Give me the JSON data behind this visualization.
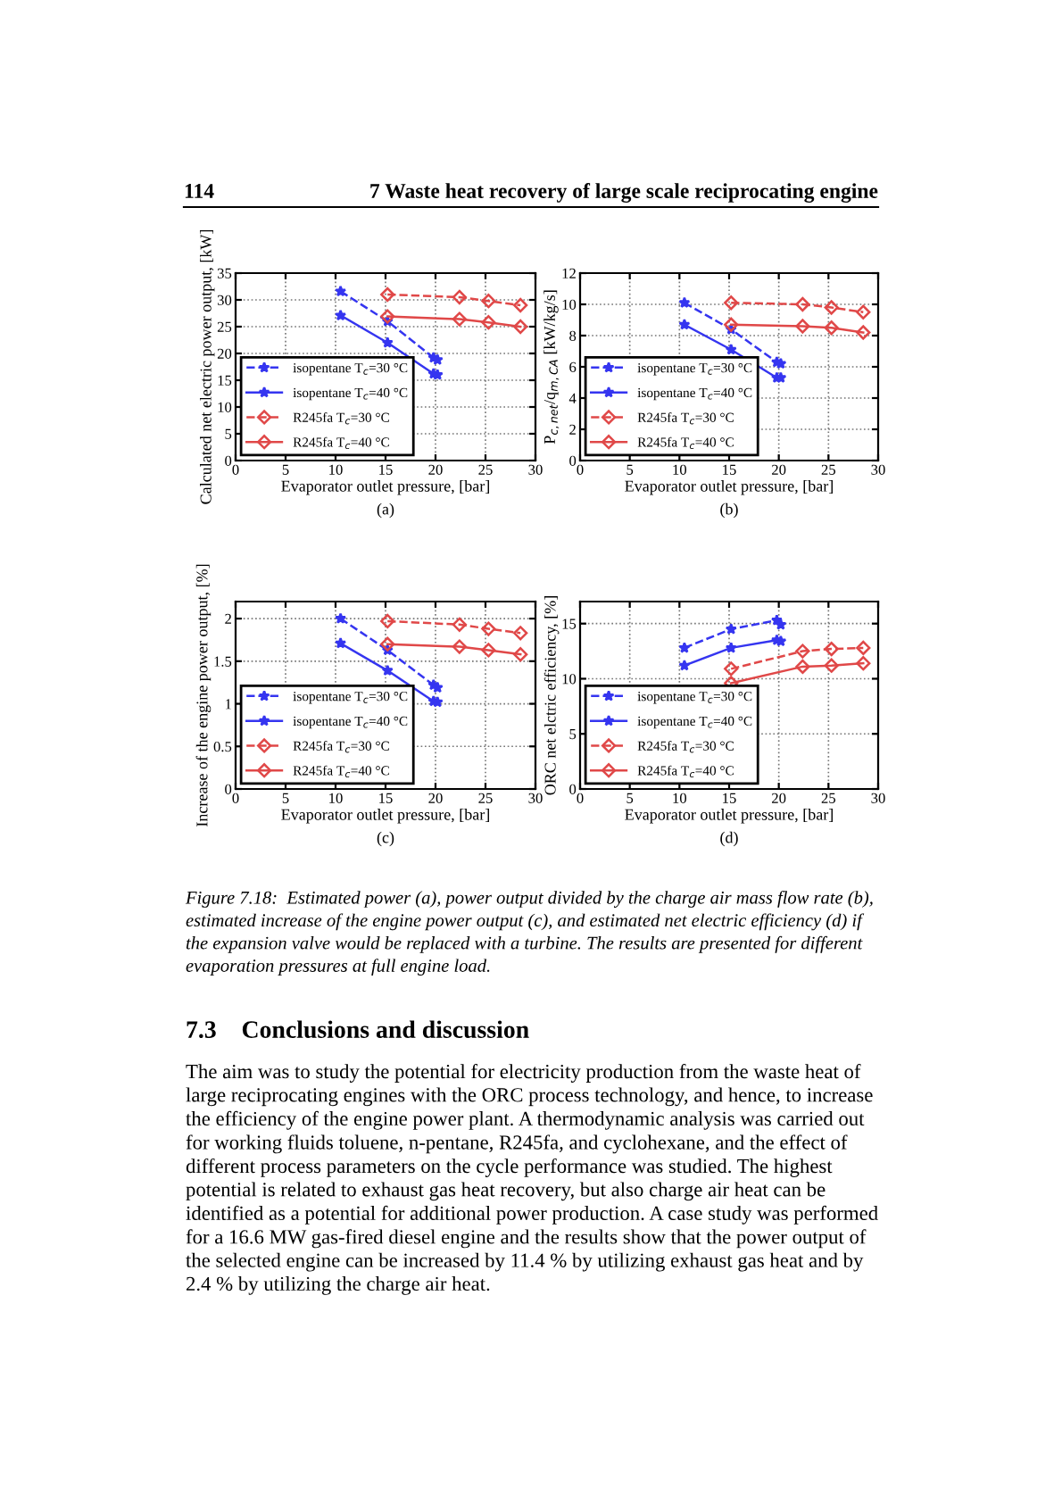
{
  "chart_data": [
    {
      "type": "other",
      "annotations": [
        "114",
        "7 Waste heat recovery of large scale reciprocating engine"
      ]
    },
    {
      "type": "line",
      "xlabel": "Evaporator outlet pressure, [bar]",
      "ylabel": "Calculated net electric power output, [kW]",
      "annotations": [
        "(a)"
      ],
      "xlim": [
        0,
        30
      ],
      "xticks": [
        0,
        5,
        10,
        15,
        20,
        25,
        30
      ],
      "ylim": [
        0,
        35
      ],
      "yticks": [
        0,
        5,
        10,
        15,
        20,
        25,
        30,
        35
      ],
      "grid": true,
      "legend": "bottom left",
      "series": [
        {
          "name": "isopentane T$_{c}$=30 °C",
          "color": "#3535f0",
          "marker": "star",
          "line_style": "dashed",
          "x": [
            10.5,
            15.2,
            19.8,
            20.2
          ],
          "values": [
            31.6,
            26,
            19.2,
            18.8
          ]
        },
        {
          "name": "isopentane T$_{c}$=40 °C",
          "color": "#3535f0",
          "marker": "star",
          "line_style": "solid",
          "x": [
            10.5,
            15.2,
            19.8,
            20.2
          ],
          "values": [
            27.1,
            22,
            16.2,
            16
          ]
        },
        {
          "name": "R245fa T$_{c}$=30 °C",
          "color": "#e04848",
          "marker": "diamond",
          "line_style": "dashed",
          "x": [
            15.2,
            22.4,
            25.3,
            28.5
          ],
          "values": [
            31,
            30.5,
            29.8,
            29
          ]
        },
        {
          "name": "R245fa T$_{c}$=40 °C",
          "color": "#e04848",
          "marker": "diamond",
          "line_style": "solid",
          "x": [
            15.2,
            22.4,
            25.3,
            28.5
          ],
          "values": [
            26.9,
            26.4,
            25.8,
            25
          ]
        }
      ]
    },
    {
      "type": "line",
      "xlabel": "Evaporator outlet pressure, [bar]",
      "ylabel": "P$_{c,net}$/q$_{m,CA}$ [kW/kg/s]",
      "annotations": [
        "(b)"
      ],
      "xlim": [
        0,
        30
      ],
      "xticks": [
        0,
        5,
        10,
        15,
        20,
        25,
        30
      ],
      "ylim": [
        0,
        12
      ],
      "yticks": [
        0,
        2,
        4,
        6,
        8,
        10,
        12
      ],
      "grid": true,
      "legend": "bottom left",
      "series": [
        {
          "name": "isopentane T$_{c}$=30 °C",
          "color": "#3535f0",
          "marker": "star",
          "line_style": "dashed",
          "x": [
            10.5,
            15.2,
            19.8,
            20.2
          ],
          "values": [
            10.1,
            8.4,
            6.3,
            6.2
          ]
        },
        {
          "name": "isopentane T$_{c}$=40 °C",
          "color": "#3535f0",
          "marker": "star",
          "line_style": "solid",
          "x": [
            10.5,
            15.2,
            19.8,
            20.2
          ],
          "values": [
            8.7,
            7.1,
            5.3,
            5.3
          ]
        },
        {
          "name": "R245fa T$_{c}$=30 °C",
          "color": "#e04848",
          "marker": "diamond",
          "line_style": "dashed",
          "x": [
            15.2,
            22.4,
            25.3,
            28.5
          ],
          "values": [
            10.1,
            10.0,
            9.8,
            9.5
          ]
        },
        {
          "name": "R245fa T$_{c}$=40 °C",
          "color": "#e04848",
          "marker": "diamond",
          "line_style": "solid",
          "x": [
            15.2,
            22.4,
            25.3,
            28.5
          ],
          "values": [
            8.7,
            8.6,
            8.5,
            8.2
          ]
        }
      ]
    },
    {
      "type": "line",
      "xlabel": "Evaporator outlet pressure, [bar]",
      "ylabel": "Increase of the engine power output, [%]",
      "annotations": [
        "(c)"
      ],
      "xlim": [
        0,
        30
      ],
      "xticks": [
        0,
        5,
        10,
        15,
        20,
        25,
        30
      ],
      "ylim": [
        0,
        2.2
      ],
      "yticks": [
        0,
        0.5,
        1,
        1.5,
        2
      ],
      "grid": true,
      "legend": "bottom left",
      "series": [
        {
          "name": "isopentane T$_{c}$=30 °C",
          "color": "#3535f0",
          "marker": "star",
          "line_style": "dashed",
          "x": [
            10.5,
            15.2,
            19.8,
            20.2
          ],
          "values": [
            2.0,
            1.63,
            1.22,
            1.19
          ]
        },
        {
          "name": "isopentane T$_{c}$=40 °C",
          "color": "#3535f0",
          "marker": "star",
          "line_style": "solid",
          "x": [
            10.5,
            15.2,
            19.8,
            20.2
          ],
          "values": [
            1.71,
            1.39,
            1.03,
            1.02
          ]
        },
        {
          "name": "R245fa T$_{c}$=30 °C",
          "color": "#e04848",
          "marker": "diamond",
          "line_style": "dashed",
          "x": [
            15.2,
            22.4,
            25.3,
            28.5
          ],
          "values": [
            1.97,
            1.93,
            1.88,
            1.83
          ]
        },
        {
          "name": "R245fa T$_{c}$=40 °C",
          "color": "#e04848",
          "marker": "diamond",
          "line_style": "solid",
          "x": [
            15.2,
            22.4,
            25.3,
            28.5
          ],
          "values": [
            1.7,
            1.67,
            1.63,
            1.58
          ]
        }
      ]
    },
    {
      "type": "line",
      "xlabel": "Evaporator outlet pressure, [bar]",
      "ylabel": "ORC net elctric efficiency, [%]",
      "annotations": [
        "(d)"
      ],
      "xlim": [
        0,
        30
      ],
      "xticks": [
        0,
        5,
        10,
        15,
        20,
        25,
        30
      ],
      "ylim": [
        0,
        17
      ],
      "yticks": [
        0,
        5,
        10,
        15
      ],
      "grid": true,
      "legend": "bottom left",
      "series": [
        {
          "name": "isopentane T$_{c}$=30 °C",
          "color": "#3535f0",
          "marker": "star",
          "line_style": "dashed",
          "x": [
            10.5,
            15.2,
            19.8,
            20.2
          ],
          "values": [
            12.8,
            14.5,
            15.3,
            14.9
          ]
        },
        {
          "name": "isopentane T$_{c}$=40 °C",
          "color": "#3535f0",
          "marker": "star",
          "line_style": "solid",
          "x": [
            10.5,
            15.2,
            19.8,
            20.2
          ],
          "values": [
            11.2,
            12.8,
            13.5,
            13.4
          ]
        },
        {
          "name": "R245fa T$_{c}$=30 °C",
          "color": "#e04848",
          "marker": "diamond",
          "line_style": "dashed",
          "x": [
            15.2,
            22.4,
            25.3,
            28.5
          ],
          "values": [
            10.9,
            12.5,
            12.7,
            12.8
          ]
        },
        {
          "name": "R245fa T$_{c}$=40 °C",
          "color": "#e04848",
          "marker": "diamond",
          "line_style": "solid",
          "x": [
            15.2,
            22.4,
            25.3,
            28.5
          ],
          "values": [
            9.6,
            11.1,
            11.2,
            11.4
          ]
        }
      ]
    },
    {
      "type": "other",
      "title": "7.3    Conclusions and discussion",
      "annotations": [
        "Figure 7.18:  Estimated power (a), power output divided by the charge air mass flow rate (b), estimated increase of the engine power output (c), and estimated net electric efficiency (d) if the expansion valve would be replaced with a turbine. The results are presented for different evaporation pressures at full engine load.",
        "The aim was to study the potential for electricity production from the waste heat of large reciprocating engines with the ORC process technology, and hence, to increase the efficiency of the engine power plant. A thermodynamic analysis was carried out for working fluids toluene, n-pentane, R245fa, and cyclohexane, and the effect of different process parameters on the cycle performance was studied. The highest potential is related to exhaust gas heat recovery, but also charge air heat can be identified as a potential for additional power production. A case study was performed for a 16.6 MW gas-fired diesel engine and the results show that the power output of the selected engine can be increased by 11.4 % by utilizing exhaust gas heat and by 2.4 % by utilizing the charge air heat."
      ]
    }
  ]
}
